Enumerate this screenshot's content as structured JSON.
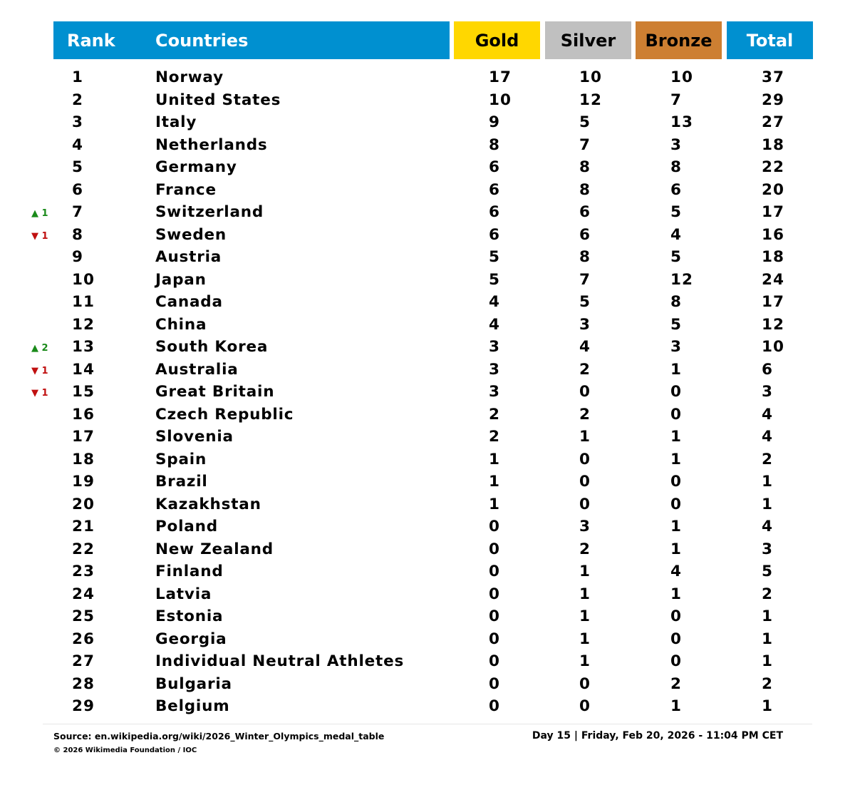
{
  "chart_data": {
    "type": "table",
    "header_colors": {
      "rank": "#0090d0",
      "countries": "#0090d0",
      "gold": "#ffd700",
      "silver": "#c0c0c0",
      "bronze": "#cd7f32",
      "total": "#0090d0"
    },
    "change_colors": {
      "up": "#1a8a1a",
      "down": "#c01010"
    },
    "columns": {
      "rank": "Rank",
      "countries": "Countries",
      "gold": "Gold",
      "silver": "Silver",
      "bronze": "Bronze",
      "total": "Total"
    },
    "rows": [
      {
        "rank": "1",
        "country": "Norway",
        "gold": "17",
        "silver": "10",
        "bronze": "10",
        "total": "37",
        "change": ""
      },
      {
        "rank": "2",
        "country": "United States",
        "gold": "10",
        "silver": "12",
        "bronze": "7",
        "total": "29",
        "change": ""
      },
      {
        "rank": "3",
        "country": "Italy",
        "gold": "9",
        "silver": "5",
        "bronze": "13",
        "total": "27",
        "change": ""
      },
      {
        "rank": "4",
        "country": "Netherlands",
        "gold": "8",
        "silver": "7",
        "bronze": "3",
        "total": "18",
        "change": ""
      },
      {
        "rank": "5",
        "country": "Germany",
        "gold": "6",
        "silver": "8",
        "bronze": "8",
        "total": "22",
        "change": ""
      },
      {
        "rank": "6",
        "country": "France",
        "gold": "6",
        "silver": "8",
        "bronze": "6",
        "total": "20",
        "change": ""
      },
      {
        "rank": "7",
        "country": "Switzerland",
        "gold": "6",
        "silver": "6",
        "bronze": "5",
        "total": "17",
        "change": "▲ 1",
        "direction": "up"
      },
      {
        "rank": "8",
        "country": "Sweden",
        "gold": "6",
        "silver": "6",
        "bronze": "4",
        "total": "16",
        "change": "▼ 1",
        "direction": "down"
      },
      {
        "rank": "9",
        "country": "Austria",
        "gold": "5",
        "silver": "8",
        "bronze": "5",
        "total": "18",
        "change": ""
      },
      {
        "rank": "10",
        "country": "Japan",
        "gold": "5",
        "silver": "7",
        "bronze": "12",
        "total": "24",
        "change": ""
      },
      {
        "rank": "11",
        "country": "Canada",
        "gold": "4",
        "silver": "5",
        "bronze": "8",
        "total": "17",
        "change": ""
      },
      {
        "rank": "12",
        "country": "China",
        "gold": "4",
        "silver": "3",
        "bronze": "5",
        "total": "12",
        "change": ""
      },
      {
        "rank": "13",
        "country": "South Korea",
        "gold": "3",
        "silver": "4",
        "bronze": "3",
        "total": "10",
        "change": "▲ 2",
        "direction": "up"
      },
      {
        "rank": "14",
        "country": "Australia",
        "gold": "3",
        "silver": "2",
        "bronze": "1",
        "total": "6",
        "change": "▼ 1",
        "direction": "down"
      },
      {
        "rank": "15",
        "country": "Great Britain",
        "gold": "3",
        "silver": "0",
        "bronze": "0",
        "total": "3",
        "change": "▼ 1",
        "direction": "down"
      },
      {
        "rank": "16",
        "country": "Czech Republic",
        "gold": "2",
        "silver": "2",
        "bronze": "0",
        "total": "4",
        "change": ""
      },
      {
        "rank": "17",
        "country": "Slovenia",
        "gold": "2",
        "silver": "1",
        "bronze": "1",
        "total": "4",
        "change": ""
      },
      {
        "rank": "18",
        "country": "Spain",
        "gold": "1",
        "silver": "0",
        "bronze": "1",
        "total": "2",
        "change": ""
      },
      {
        "rank": "19",
        "country": "Brazil",
        "gold": "1",
        "silver": "0",
        "bronze": "0",
        "total": "1",
        "change": ""
      },
      {
        "rank": "20",
        "country": "Kazakhstan",
        "gold": "1",
        "silver": "0",
        "bronze": "0",
        "total": "1",
        "change": ""
      },
      {
        "rank": "21",
        "country": "Poland",
        "gold": "0",
        "silver": "3",
        "bronze": "1",
        "total": "4",
        "change": ""
      },
      {
        "rank": "22",
        "country": "New Zealand",
        "gold": "0",
        "silver": "2",
        "bronze": "1",
        "total": "3",
        "change": ""
      },
      {
        "rank": "23",
        "country": "Finland",
        "gold": "0",
        "silver": "1",
        "bronze": "4",
        "total": "5",
        "change": ""
      },
      {
        "rank": "24",
        "country": "Latvia",
        "gold": "0",
        "silver": "1",
        "bronze": "1",
        "total": "2",
        "change": ""
      },
      {
        "rank": "25",
        "country": "Estonia",
        "gold": "0",
        "silver": "1",
        "bronze": "0",
        "total": "1",
        "change": ""
      },
      {
        "rank": "26",
        "country": "Georgia",
        "gold": "0",
        "silver": "1",
        "bronze": "0",
        "total": "1",
        "change": ""
      },
      {
        "rank": "27",
        "country": "Individual Neutral Athletes",
        "gold": "0",
        "silver": "1",
        "bronze": "0",
        "total": "1",
        "change": ""
      },
      {
        "rank": "28",
        "country": "Bulgaria",
        "gold": "0",
        "silver": "0",
        "bronze": "2",
        "total": "2",
        "change": ""
      },
      {
        "rank": "29",
        "country": "Belgium",
        "gold": "0",
        "silver": "0",
        "bronze": "1",
        "total": "1",
        "change": ""
      }
    ]
  },
  "footer": {
    "source": "Source: en.wikipedia.org/wiki/2026_Winter_Olympics_medal_table",
    "copyright": "© 2026 Wikimedia Foundation / IOC",
    "timestamp": "Day 15 | Friday, Feb 20, 2026 - 11:04 PM CET"
  }
}
